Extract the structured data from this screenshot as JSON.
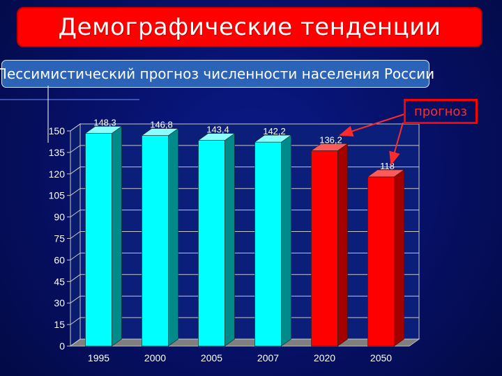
{
  "slide": {
    "title": "Демографические тенденции",
    "subtitle": "Пессимистический прогноз численности населения России",
    "callout": "прогноз"
  },
  "colors": {
    "title_bg": "#ff0000",
    "subtitle_bg": "#2a63b8",
    "historical_bar": "#00ffff",
    "forecast_bar": "#ff0000",
    "plot_bg": "#0b1f7a"
  },
  "chart_data": {
    "type": "bar",
    "categories": [
      "1995",
      "2000",
      "2005",
      "2007",
      "2020",
      "2050"
    ],
    "values": [
      148.3,
      146.8,
      143.4,
      142.2,
      136.2,
      118
    ],
    "value_labels": [
      "148,3",
      "146,8",
      "143,4",
      "142,2",
      "136,2",
      "118"
    ],
    "forecast": [
      false,
      false,
      false,
      false,
      true,
      true
    ],
    "ylim": [
      0,
      150
    ],
    "yticks": [
      0,
      15,
      30,
      45,
      60,
      75,
      90,
      105,
      120,
      135,
      150
    ],
    "grid": true
  }
}
